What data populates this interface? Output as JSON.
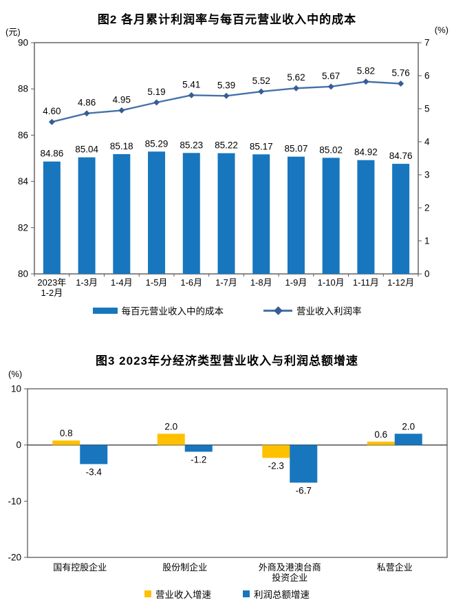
{
  "colors": {
    "bar_blue": "#1776BE",
    "line_blue": "#4472A8",
    "marker_blue": "#365E94",
    "gold": "#FFC000",
    "axis": "#595959",
    "zero_line": "#404040"
  },
  "chart_data": [
    {
      "type": "combo-bar-line",
      "title": "图2 各月累计利润率与每百元营业收入中的成本",
      "unit_left": "(元)",
      "unit_right": "(%)",
      "left_axis": {
        "label": "(元)",
        "min": 80,
        "max": 90,
        "ticks": [
          90,
          88,
          86,
          84,
          82,
          80
        ]
      },
      "right_axis": {
        "label": "(%)",
        "min": 0,
        "max": 7,
        "ticks": [
          7,
          6,
          5,
          4,
          3,
          2,
          1,
          0
        ]
      },
      "categories": [
        "2023年\n1-2月",
        "1-3月",
        "1-4月",
        "1-5月",
        "1-6月",
        "1-7月",
        "1-8月",
        "1-9月",
        "1-10月",
        "1-11月",
        "1-12月"
      ],
      "grid": false,
      "legend_position": "bottom",
      "series": [
        {
          "name": "每百元营业收入中的成本",
          "type": "bar",
          "axis": "left",
          "color": "#1776BE",
          "values": [
            84.86,
            85.04,
            85.18,
            85.29,
            85.23,
            85.22,
            85.17,
            85.07,
            85.02,
            84.92,
            84.76
          ],
          "labels": [
            "84.86",
            "85.04",
            "85.18",
            "85.29",
            "85.23",
            "85.22",
            "85.17",
            "85.07",
            "85.02",
            "84.92",
            "84.76"
          ]
        },
        {
          "name": "营业收入利润率",
          "type": "line",
          "axis": "right",
          "color": "#4472A8",
          "marker_color": "#365E94",
          "values": [
            4.6,
            4.86,
            4.95,
            5.19,
            5.41,
            5.39,
            5.52,
            5.62,
            5.67,
            5.82,
            5.76
          ],
          "labels": [
            "4.60",
            "4.86",
            "4.95",
            "5.19",
            "5.41",
            "5.39",
            "5.52",
            "5.62",
            "5.67",
            "5.82",
            "5.76"
          ]
        }
      ]
    },
    {
      "type": "bar",
      "title": "图3 2023年分经济类型营业收入与利润总额增速",
      "unit_left": "(%)",
      "left_axis": {
        "label": "(%)",
        "min": -20,
        "max": 10,
        "ticks": [
          10,
          0,
          -10,
          -20
        ]
      },
      "categories": [
        "国有控股企业",
        "股份制企业",
        "外商及港澳台商\n投资企业",
        "私营企业"
      ],
      "grid": false,
      "legend_position": "bottom",
      "series": [
        {
          "name": "营业收入增速",
          "color": "#FFC000",
          "values": [
            0.8,
            2.0,
            -2.3,
            0.6
          ],
          "labels": [
            "0.8",
            "2.0",
            "-2.3",
            "0.6"
          ]
        },
        {
          "name": "利润总额增速",
          "color": "#1776BE",
          "values": [
            -3.4,
            -1.2,
            -6.7,
            2.0
          ],
          "labels": [
            "-3.4",
            "-1.2",
            "-6.7",
            "2.0"
          ]
        }
      ]
    }
  ]
}
